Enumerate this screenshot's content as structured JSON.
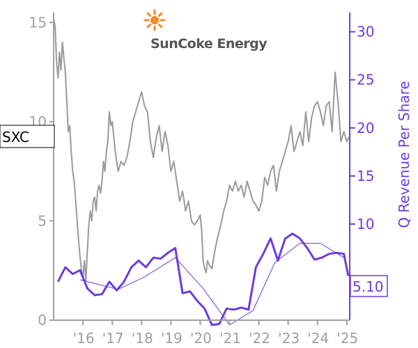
{
  "chart_data": {
    "type": "line",
    "logo": {
      "name": "SunCoke Energy",
      "icon": "sun-icon",
      "icon_color": "#f28c28"
    },
    "ticker": "SXC",
    "last_value_label": "5.10",
    "ylabel_right": "Q Revenue Per Share",
    "colors": {
      "price": "#9a9a9a",
      "revenue": "#6a3ddf",
      "trend": "#6a3ddf",
      "left_axis": "#a0a0a0"
    },
    "x_ticks": [
      {
        "label": "'16",
        "year": 2016.0
      },
      {
        "label": "'17",
        "year": 2017.0
      },
      {
        "label": "'18",
        "year": 2018.0
      },
      {
        "label": "'19",
        "year": 2019.0
      },
      {
        "label": "'20",
        "year": 2020.0
      },
      {
        "label": "'21",
        "year": 2021.0
      },
      {
        "label": "'22",
        "year": 2022.0
      },
      {
        "label": "'23",
        "year": 2023.0
      },
      {
        "label": "'24",
        "year": 2024.0
      },
      {
        "label": "'25",
        "year": 2025.0
      }
    ],
    "xlim": [
      2015.0,
      2025.1
    ],
    "y_left": {
      "ticks": [
        0,
        5,
        10,
        15
      ],
      "ylim": [
        0,
        15.5
      ]
    },
    "y_right": {
      "ticks": [
        10,
        15,
        20,
        25,
        30
      ],
      "ylim": [
        0,
        32
      ]
    },
    "series": [
      {
        "axis": "left",
        "x": [
          2015.0,
          2015.05,
          2015.1,
          2015.15,
          2015.2,
          2015.25,
          2015.3,
          2015.35,
          2015.4,
          2015.45,
          2015.5,
          2015.55,
          2015.6,
          2015.65,
          2015.7,
          2015.75,
          2015.8,
          2015.85,
          2015.9,
          2015.95,
          2016.0,
          2016.05,
          2016.1,
          2016.15,
          2016.2,
          2016.25,
          2016.3,
          2016.35,
          2016.4,
          2016.45,
          2016.5,
          2016.55,
          2016.6,
          2016.65,
          2016.7,
          2016.75,
          2016.8,
          2016.85,
          2016.9,
          2016.95,
          2017.0,
          2017.1,
          2017.2,
          2017.3,
          2017.4,
          2017.5,
          2017.6,
          2017.7,
          2017.8,
          2017.9,
          2018.0,
          2018.1,
          2018.2,
          2018.3,
          2018.4,
          2018.5,
          2018.6,
          2018.7,
          2018.8,
          2018.9,
          2019.0,
          2019.1,
          2019.2,
          2019.3,
          2019.4,
          2019.5,
          2019.6,
          2019.7,
          2019.8,
          2019.9,
          2020.0,
          2020.05,
          2020.1,
          2020.15,
          2020.2,
          2020.25,
          2020.3,
          2020.4,
          2020.5,
          2020.6,
          2020.7,
          2020.8,
          2020.9,
          2021.0,
          2021.1,
          2021.2,
          2021.3,
          2021.4,
          2021.5,
          2021.6,
          2021.7,
          2021.8,
          2021.9,
          2022.0,
          2022.1,
          2022.2,
          2022.3,
          2022.4,
          2022.5,
          2022.6,
          2022.7,
          2022.8,
          2022.9,
          2023.0,
          2023.1,
          2023.2,
          2023.3,
          2023.4,
          2023.5,
          2023.6,
          2023.7,
          2023.8,
          2023.9,
          2024.0,
          2024.1,
          2024.2,
          2024.3,
          2024.4,
          2024.5,
          2024.6,
          2024.7,
          2024.8,
          2024.9,
          2025.0,
          2025.1
        ],
        "values": [
          15.2,
          14.8,
          13.0,
          12.2,
          13.5,
          12.6,
          14.0,
          13.2,
          12.5,
          11.0,
          9.5,
          9.8,
          8.5,
          7.5,
          7.0,
          6.0,
          5.0,
          4.0,
          3.2,
          2.5,
          2.2,
          3.0,
          2.0,
          3.5,
          4.8,
          5.5,
          5.0,
          6.0,
          6.2,
          5.5,
          6.5,
          6.8,
          6.4,
          7.0,
          8.0,
          7.5,
          8.5,
          9.0,
          10.5,
          9.8,
          10.0,
          8.5,
          7.5,
          8.0,
          7.8,
          8.2,
          9.0,
          10.0,
          10.5,
          11.0,
          11.5,
          10.8,
          10.5,
          9.0,
          8.2,
          9.2,
          9.8,
          8.5,
          9.5,
          8.8,
          7.5,
          8.0,
          7.0,
          6.0,
          6.5,
          5.5,
          6.0,
          5.0,
          4.8,
          5.0,
          5.3,
          4.5,
          3.0,
          2.6,
          2.4,
          3.0,
          2.8,
          2.6,
          3.5,
          4.2,
          4.8,
          5.5,
          6.0,
          6.8,
          6.5,
          7.0,
          6.5,
          6.8,
          6.2,
          7.0,
          6.5,
          6.0,
          5.8,
          5.5,
          6.0,
          7.2,
          6.8,
          7.5,
          7.8,
          6.5,
          7.5,
          8.0,
          8.5,
          9.0,
          9.8,
          8.5,
          9.0,
          9.5,
          8.8,
          10.5,
          9.0,
          10.2,
          10.8,
          11.0,
          10.5,
          9.8,
          10.8,
          11.0,
          9.5,
          12.5,
          11.0,
          9.0,
          9.5,
          9.0,
          9.3
        ]
      },
      {
        "axis": "right",
        "x": [
          2015.15,
          2015.4,
          2015.65,
          2015.9,
          2016.15,
          2016.4,
          2016.65,
          2016.9,
          2017.15,
          2017.4,
          2017.65,
          2017.9,
          2018.15,
          2018.4,
          2018.65,
          2018.9,
          2019.15,
          2019.4,
          2019.65,
          2019.9,
          2020.15,
          2020.4,
          2020.65,
          2020.9,
          2021.15,
          2021.4,
          2021.65,
          2021.9,
          2022.15,
          2022.4,
          2022.65,
          2022.9,
          2023.15,
          2023.4,
          2023.65,
          2023.9,
          2024.15,
          2024.4,
          2024.65,
          2024.9,
          2025.05
        ],
        "values": [
          4.0,
          5.5,
          4.8,
          5.2,
          3.3,
          2.6,
          2.7,
          4.0,
          3.1,
          4.0,
          5.5,
          6.2,
          5.5,
          6.5,
          6.4,
          7.0,
          7.5,
          2.8,
          3.0,
          2.0,
          1.2,
          -0.5,
          -0.4,
          1.2,
          1.1,
          1.3,
          1.1,
          5.5,
          6.9,
          8.5,
          6.2,
          8.5,
          9.0,
          8.5,
          7.5,
          6.3,
          6.5,
          6.9,
          7.0,
          6.9,
          4.6
        ]
      },
      {
        "axis": "right",
        "x": [
          2015.9,
          2017.2,
          2018.1,
          2019.15,
          2020.1,
          2021.0,
          2021.8,
          2022.55,
          2023.4,
          2024.1,
          2024.9
        ],
        "values": [
          4.2,
          3.2,
          4.5,
          6.5,
          3.3,
          -0.5,
          1.0,
          6.0,
          8.0,
          8.0,
          6.5
        ]
      }
    ]
  }
}
